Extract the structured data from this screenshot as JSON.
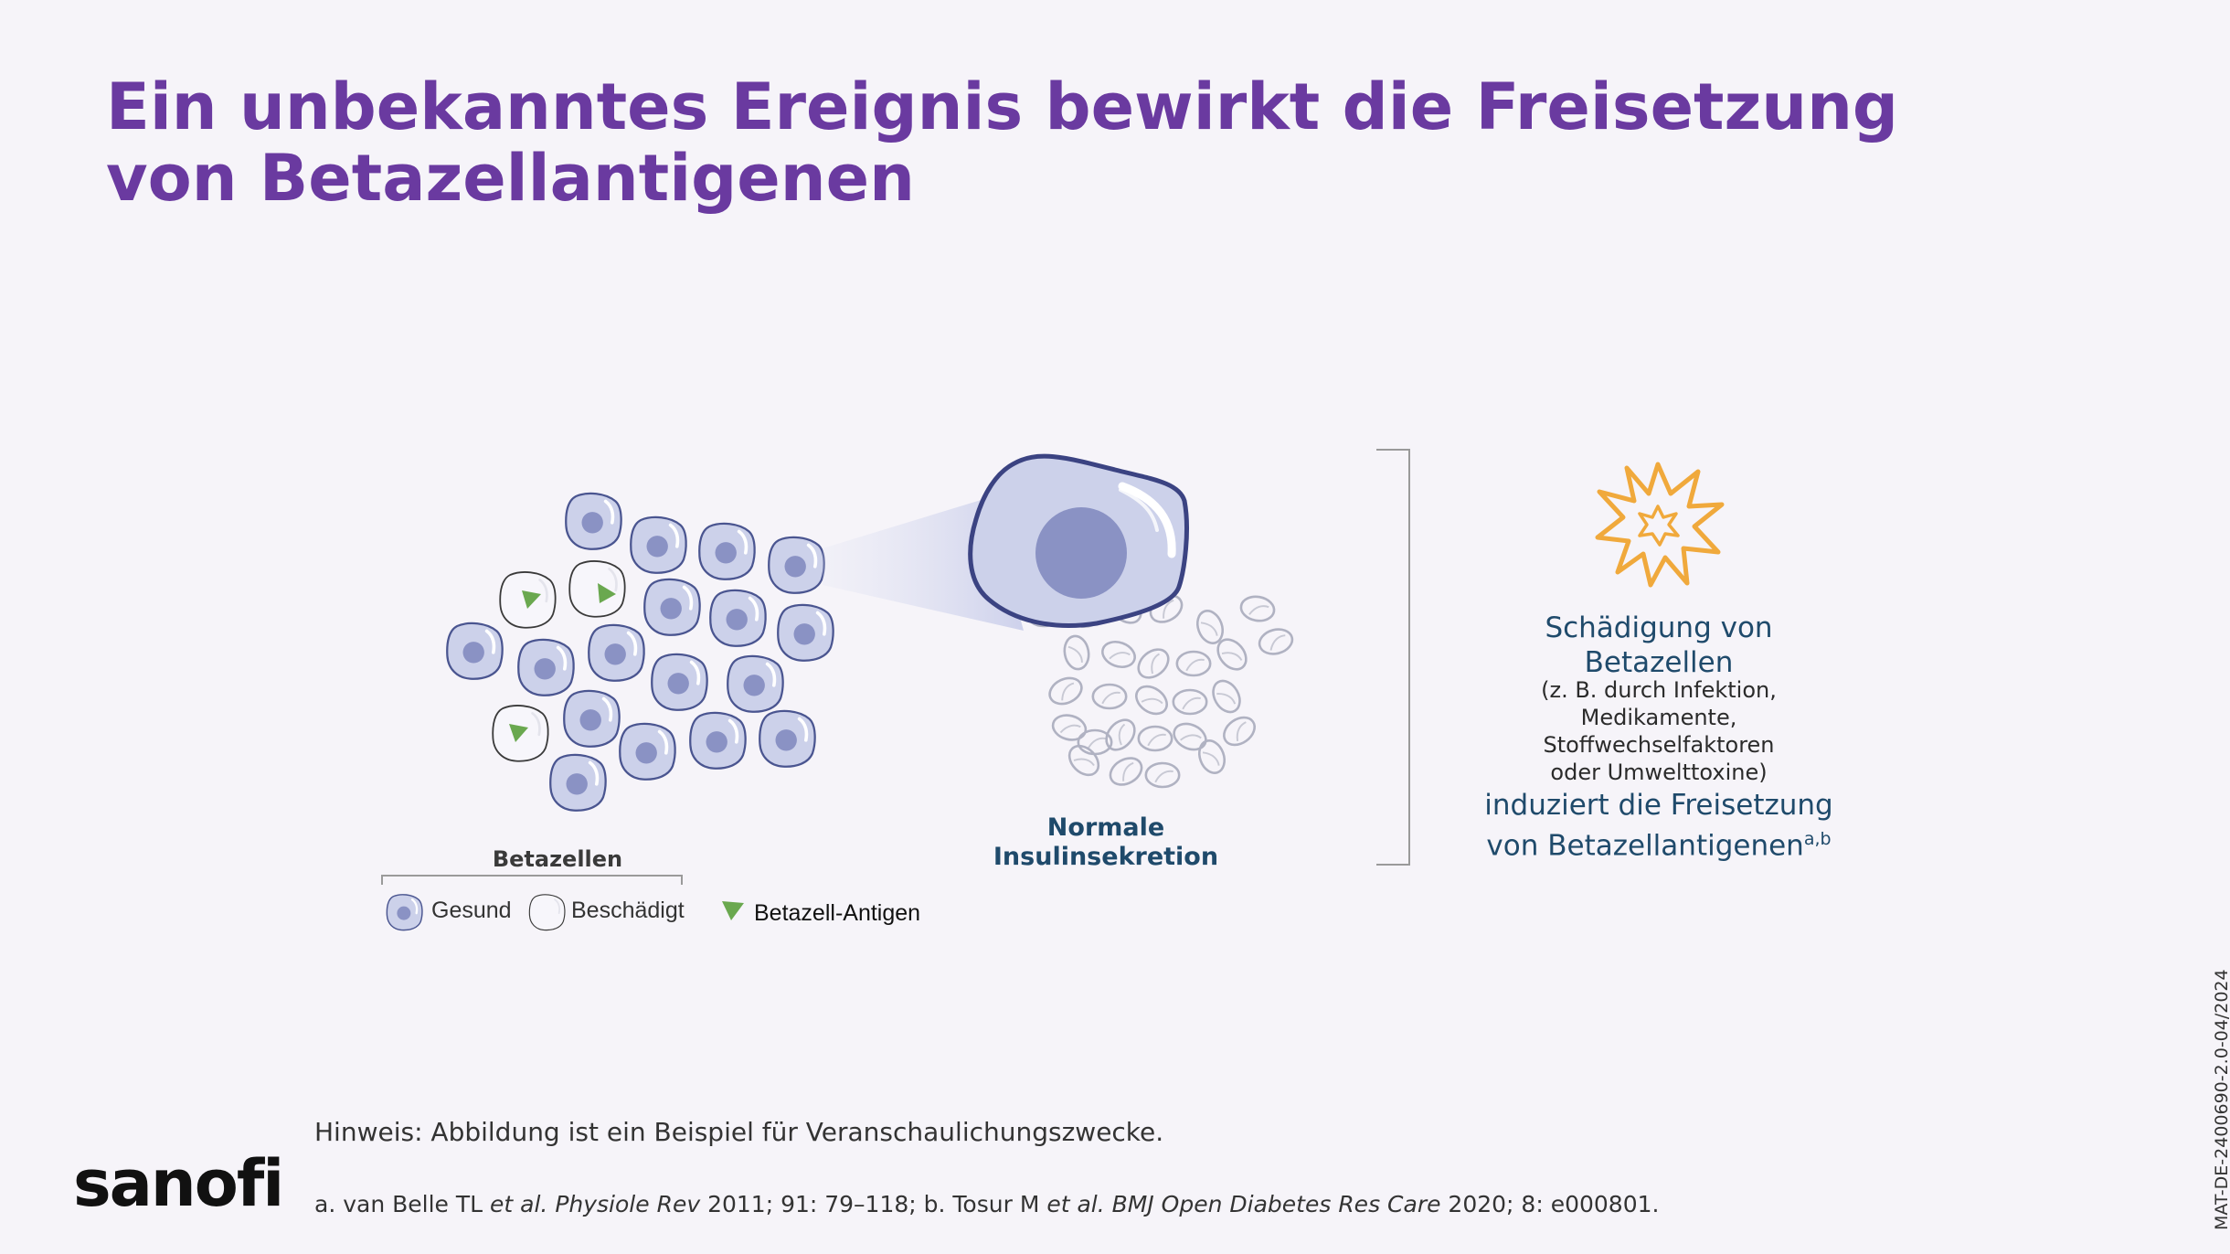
{
  "title": {
    "line1": "Ein unbekanntes Ereignis bewirkt die Freisetzung",
    "line2": "von Betazellantigenen"
  },
  "diagram": {
    "cells_label": "Betazellen",
    "secretion_label_line1": "Normale",
    "secretion_label_line2": "Insulinsekretion",
    "legend": {
      "healthy": "Gesund",
      "damaged": "Beschädigt",
      "antigen": "Betazell-Antigen"
    },
    "damage": {
      "heading_line1": "Schädigung von",
      "heading_line2": "Betazellen",
      "detail_line1": "(z. B. durch Infektion,",
      "detail_line2": "Medikamente,",
      "detail_line3": "Stoffwechselfaktoren",
      "detail_line4": "oder Umwelttoxine)",
      "result_line1": "induziert die Freisetzung",
      "result_line2": "von Betazellantigenen",
      "result_sup": "a,b"
    },
    "colors": {
      "cell_fill": "#ccd1ea",
      "cell_outline": "#4a5590",
      "nucleus": "#8a92c4",
      "antigen": "#6aa84f",
      "burst": "#f0a93c",
      "text_blue": "#1f4a6b"
    }
  },
  "footer": {
    "note": "Hinweis: Abbildung ist ein Beispiel für Veranschaulichungszwecke.",
    "refs": {
      "a_author": "a. van Belle TL ",
      "a_etal": "et al.",
      "a_journal": " Physiole Rev",
      "a_rest": " 2011; 91: 79–118; b. Tosur M ",
      "b_etal": "et al.",
      "b_journal": " BMJ Open Diabetes Res Care",
      "b_rest": " 2020; 8: e000801."
    },
    "code": "MAT-DE-2400690-2.0-04/2024",
    "logo": "sanofi"
  }
}
